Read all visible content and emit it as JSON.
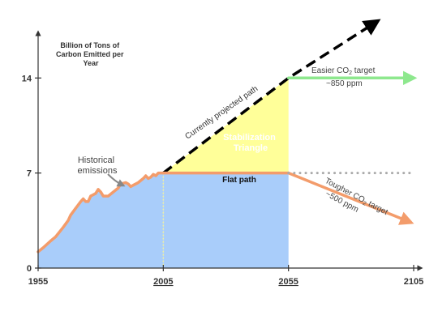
{
  "chart_data": {
    "type": "line",
    "title": "",
    "ylabel": [
      "Billion of Tons of",
      "Carbon Emitted per",
      "Year"
    ],
    "xlabel": "",
    "xlim": [
      1955,
      2105
    ],
    "ylim": [
      0,
      17
    ],
    "x_ticks": [
      {
        "value": 1955,
        "label": "1955",
        "underline": false
      },
      {
        "value": 2005,
        "label": "2005",
        "underline": true
      },
      {
        "value": 2055,
        "label": "2055",
        "underline": true
      },
      {
        "value": 2105,
        "label": "2105",
        "underline": false
      }
    ],
    "y_ticks": [
      {
        "value": 0,
        "label": "0"
      },
      {
        "value": 7,
        "label": "7"
      },
      {
        "value": 14,
        "label": "14"
      }
    ],
    "series": [
      {
        "name": "Historical emissions",
        "style": "solid",
        "color": "#f39c6b",
        "points": [
          [
            1955,
            1.2
          ],
          [
            1957,
            1.5
          ],
          [
            1960,
            2.0
          ],
          [
            1962,
            2.3
          ],
          [
            1965,
            3.0
          ],
          [
            1967,
            3.5
          ],
          [
            1968,
            3.9
          ],
          [
            1970,
            4.4
          ],
          [
            1972,
            4.9
          ],
          [
            1973,
            5.1
          ],
          [
            1974,
            4.9
          ],
          [
            1975,
            4.9
          ],
          [
            1976,
            5.3
          ],
          [
            1977,
            5.4
          ],
          [
            1978,
            5.5
          ],
          [
            1979,
            5.8
          ],
          [
            1980,
            5.6
          ],
          [
            1981,
            5.3
          ],
          [
            1982,
            5.3
          ],
          [
            1983,
            5.3
          ],
          [
            1985,
            5.6
          ],
          [
            1987,
            5.9
          ],
          [
            1988,
            6.2
          ],
          [
            1990,
            6.3
          ],
          [
            1991,
            6.2
          ],
          [
            1992,
            6.0
          ],
          [
            1993,
            6.1
          ],
          [
            1995,
            6.3
          ],
          [
            1997,
            6.6
          ],
          [
            1998,
            6.8
          ],
          [
            1999,
            6.6
          ],
          [
            2000,
            6.7
          ],
          [
            2001,
            6.9
          ],
          [
            2002,
            6.8
          ],
          [
            2003,
            7.0
          ],
          [
            2005,
            7.0
          ]
        ]
      },
      {
        "name": "Currently projected path",
        "style": "dashed",
        "color": "#000000",
        "points": [
          [
            2005,
            7.0
          ],
          [
            2055,
            14.0
          ],
          [
            2089,
            18.0
          ]
        ]
      },
      {
        "name": "Flat path",
        "style": "solid",
        "color": "#f39c6b",
        "points": [
          [
            2005,
            7.0
          ],
          [
            2055,
            7.0
          ]
        ]
      },
      {
        "name": "Easier CO2 target ~850 ppm",
        "style": "arrow",
        "color": "#8ee88e",
        "points": [
          [
            2055,
            14.0
          ],
          [
            2103,
            14.0
          ]
        ]
      },
      {
        "name": "Tougher CO2 target ~500 ppm",
        "style": "arrow",
        "color": "#f39c6b",
        "points": [
          [
            2055,
            7.0
          ],
          [
            2102,
            3.5
          ]
        ]
      },
      {
        "name": "flat continuation",
        "style": "dotted",
        "color": "#aaaaaa",
        "points": [
          [
            2055,
            7.0
          ],
          [
            2104,
            7.0
          ]
        ]
      }
    ],
    "areas": [
      {
        "name": "Stabilization Triangle",
        "color": "#ffff99",
        "points": [
          [
            2005,
            7.0
          ],
          [
            2055,
            14.0
          ],
          [
            2055,
            7.0
          ]
        ]
      },
      {
        "name": "below flat path",
        "color": "#a9cdfa",
        "points": [
          [
            2005,
            0
          ],
          [
            2005,
            7.0
          ],
          [
            2055,
            7.0
          ],
          [
            2055,
            0
          ]
        ]
      }
    ],
    "annotations": {
      "historical": [
        "Historical",
        "emissions"
      ],
      "projected": "Currently projected path",
      "triangle": [
        "Stabilization",
        "Triangle"
      ],
      "flat": "Flat path",
      "easier": {
        "pre": "Easier CO",
        "sub": "2",
        "post": " target",
        "line2": "~850 ppm"
      },
      "tougher": {
        "pre": "Tougher CO",
        "sub": "2",
        "post": " target",
        "line2": "~500 ppm"
      }
    },
    "grid": false,
    "legend": "none"
  }
}
